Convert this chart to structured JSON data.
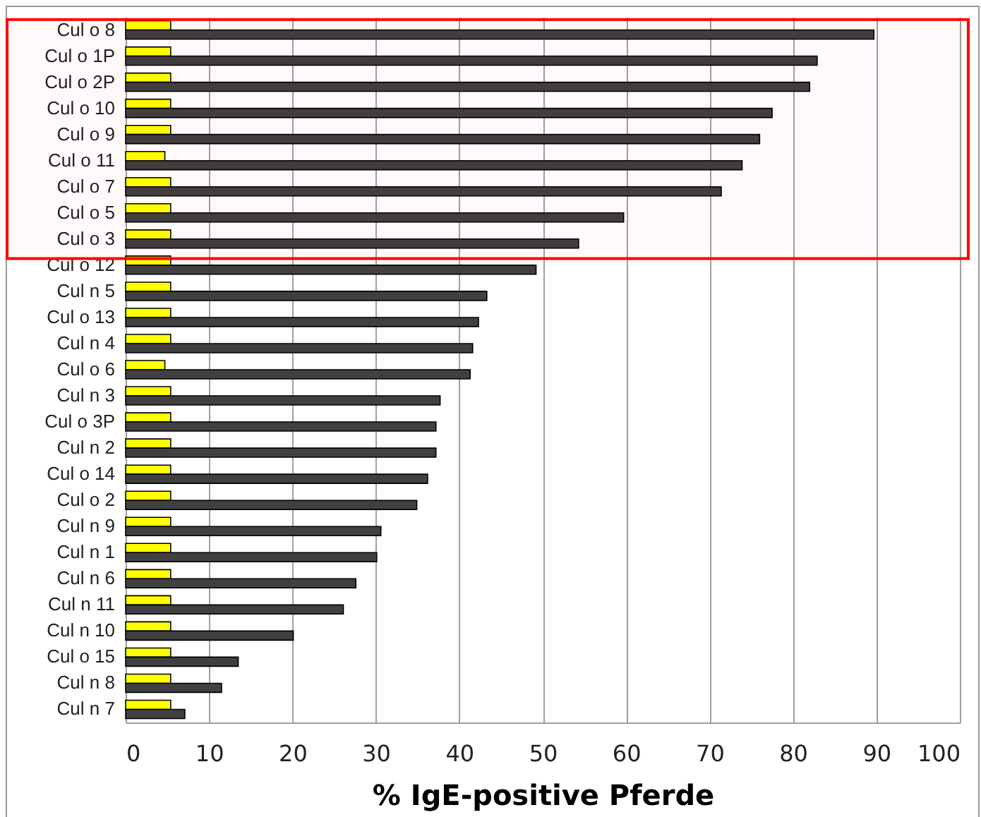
{
  "chart_data": {
    "type": "bar",
    "orientation": "horizontal",
    "xlabel": "% IgE-positive Pferde",
    "categories": [
      "Cul o 8",
      "Cul o 1P",
      "Cul o 2P",
      "Cul o 10",
      "Cul o 9",
      "Cul o 11",
      "Cul o 7",
      "Cul o 5",
      "Cul o 3",
      "Cul o 12",
      "Cul n 5",
      "Cul o 13",
      "Cul n 4",
      "Cul o 6",
      "Cul n 3",
      "Cul o 3P",
      "Cul n 2",
      "Cul o 14",
      "Cul o 2",
      "Cul n 9",
      "Cul n 1",
      "Cul n 6",
      "Cul n 11",
      "Cul n 10",
      "Cul o 15",
      "Cul n 8",
      "Cul n 7"
    ],
    "series": [
      {
        "color": "#ffff00",
        "values": [
          5.4,
          5.4,
          5.4,
          5.4,
          5.4,
          4.7,
          5.4,
          5.4,
          5.4,
          5.4,
          5.4,
          5.4,
          5.4,
          4.7,
          5.4,
          5.4,
          5.4,
          5.4,
          5.4,
          5.4,
          5.4,
          5.4,
          5.4,
          5.4,
          5.4,
          5.4,
          5.4
        ]
      },
      {
        "color": "#404040",
        "values": [
          89.7,
          82.9,
          82.0,
          77.5,
          76.0,
          73.9,
          71.4,
          59.7,
          54.3,
          49.2,
          43.3,
          42.3,
          41.6,
          41.3,
          37.7,
          37.2,
          37.2,
          36.2,
          34.9,
          30.6,
          30.1,
          27.6,
          26.1,
          20.1,
          13.5,
          11.5,
          7.1
        ]
      }
    ],
    "xlim": [
      0,
      100
    ],
    "xticks": [
      0,
      10,
      20,
      30,
      40,
      50,
      60,
      70,
      80,
      90,
      100
    ],
    "grid": "x",
    "bands": [
      {
        "axis": "y",
        "from": "Cul o 8",
        "to": "Cul o 3",
        "color": "#ff0000"
      }
    ]
  }
}
